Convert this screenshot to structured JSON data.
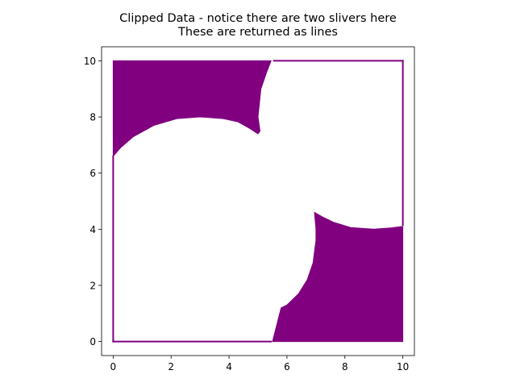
{
  "chart_data": {
    "type": "area",
    "title_lines": [
      "Clipped Data - notice there are two slivers here",
      "These are returned as lines"
    ],
    "xlabel": "",
    "ylabel": "",
    "xlim": [
      -0.4,
      10.4
    ],
    "ylim": [
      -0.5,
      10.5
    ],
    "x_ticks": [
      0,
      2,
      4,
      6,
      8,
      10
    ],
    "y_ticks": [
      0,
      2,
      4,
      6,
      8,
      10
    ],
    "grid": false,
    "fill_color": "#800080",
    "boundary_square": [
      [
        0,
        0
      ],
      [
        10,
        10
      ]
    ],
    "clip_circles": [
      {
        "center": [
          3,
          3
        ],
        "radius": 5
      },
      {
        "center": [
          9,
          9
        ],
        "radius": 5
      }
    ],
    "filled_regions": [
      {
        "name": "upper-left",
        "points": [
          [
            0,
            6.6
          ],
          [
            0,
            10
          ],
          [
            5.45,
            10
          ],
          [
            5.45,
            10
          ],
          [
            5.3,
            9.6
          ],
          [
            5.1,
            9.0
          ],
          [
            5.0,
            8.0
          ],
          [
            5.07,
            7.5
          ],
          [
            5.0,
            7.4
          ],
          [
            4.7,
            7.6
          ],
          [
            4.3,
            7.83
          ],
          [
            3.8,
            7.94
          ],
          [
            3.0,
            8.0
          ],
          [
            2.2,
            7.94
          ],
          [
            1.4,
            7.7
          ],
          [
            0.7,
            7.3
          ],
          [
            0.25,
            6.9
          ],
          [
            0,
            6.6
          ]
        ]
      },
      {
        "name": "lower-right",
        "points": [
          [
            5.5,
            0
          ],
          [
            10,
            0
          ],
          [
            10,
            4.1
          ],
          [
            9.6,
            4.05
          ],
          [
            9.0,
            4.0
          ],
          [
            8.2,
            4.06
          ],
          [
            7.6,
            4.25
          ],
          [
            7.2,
            4.45
          ],
          [
            6.95,
            4.6
          ],
          [
            7.0,
            4.0
          ],
          [
            7.0,
            3.6
          ],
          [
            6.9,
            2.8
          ],
          [
            6.7,
            2.2
          ],
          [
            6.4,
            1.7
          ],
          [
            6.0,
            1.3
          ],
          [
            5.8,
            1.2
          ],
          [
            5.5,
            0
          ]
        ]
      }
    ],
    "outline_segments": [
      [
        [
          0,
          0
        ],
        [
          5.45,
          0
        ]
      ],
      [
        [
          0,
          0
        ],
        [
          0,
          6.6
        ]
      ],
      [
        [
          5.55,
          10
        ],
        [
          10,
          10
        ]
      ],
      [
        [
          10,
          10
        ],
        [
          10,
          4.15
        ]
      ]
    ]
  }
}
